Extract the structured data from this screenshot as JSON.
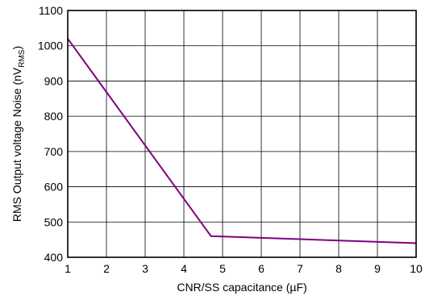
{
  "chart_data": {
    "type": "line",
    "title": "",
    "xlabel": "CNR/SS capacitance (µF)",
    "ylabel": "RMS Output voltage Noise (nV",
    "ylabel_subscript": "RMS",
    "ylabel_suffix": ")",
    "xlim": [
      1,
      10
    ],
    "ylim": [
      400,
      1100
    ],
    "xticks": [
      "1",
      "2",
      "3",
      "4",
      "5",
      "6",
      "7",
      "8",
      "9",
      "10"
    ],
    "yticks": [
      "400",
      "500",
      "600",
      "700",
      "800",
      "900",
      "1000",
      "1100"
    ],
    "grid": true,
    "legend": "none",
    "series": [
      {
        "color": "#800080",
        "x": [
          1,
          4.7,
          10
        ],
        "y": [
          1020,
          460,
          440
        ]
      }
    ]
  }
}
